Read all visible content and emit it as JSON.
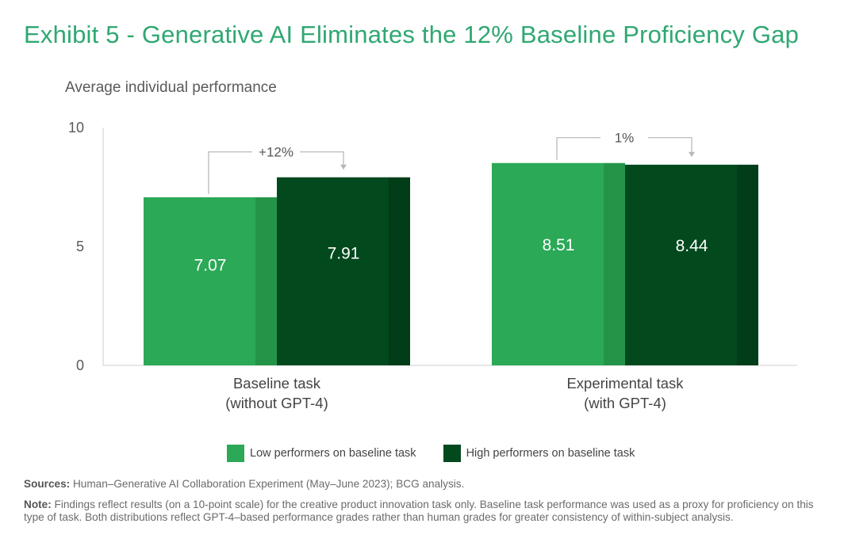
{
  "title": "Exhibit 5 - Generative AI Eliminates the 12% Baseline Proficiency Gap",
  "chart_data": {
    "type": "bar",
    "ylabel": "Average individual performance",
    "ylim": [
      0,
      10
    ],
    "yticks": [
      0,
      5,
      10
    ],
    "categories": [
      "Baseline task\n(without GPT-4)",
      "Experimental task\n(with GPT-4)"
    ],
    "category_lines": [
      [
        "Baseline task",
        "(without GPT-4)"
      ],
      [
        "Experimental task",
        "(with GPT-4)"
      ]
    ],
    "series": [
      {
        "name": "Low performers on baseline task",
        "color": "#2ba957",
        "shade": "#249548",
        "values": [
          7.07,
          8.51
        ]
      },
      {
        "name": "High performers on baseline task",
        "color": "#03491e",
        "shade": "#013d18",
        "values": [
          7.91,
          8.44
        ]
      }
    ],
    "value_labels": [
      [
        "7.07",
        "8.51"
      ],
      [
        "7.91",
        "8.44"
      ]
    ],
    "gap_annotations": [
      "+12%",
      "1%"
    ],
    "legend": "bottom"
  },
  "sources_label": "Sources:",
  "sources_text": " Human–Generative AI Collaboration Experiment (May–June 2023); BCG analysis.",
  "note_label": "Note:",
  "note_text": " Findings reflect results (on a 10-point scale) for the creative product innovation task only. Baseline task performance was used as a proxy for proficiency on this type of task. Both distributions reflect GPT-4–based performance grades rather than human grades for greater consistency of within-subject analysis."
}
